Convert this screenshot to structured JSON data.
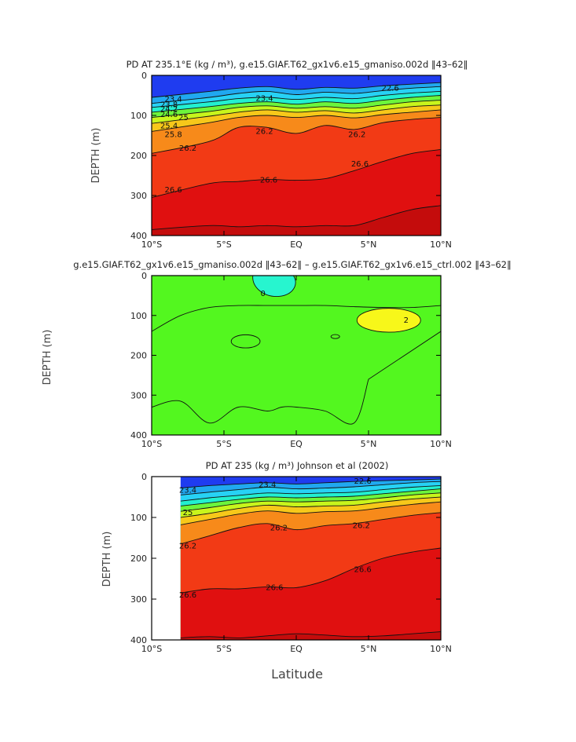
{
  "figure_xlabel": "Latitude",
  "chart_data": [
    {
      "type": "heatmap",
      "title": "PD AT 235.1°E (kg / m³), g.e15.GIAF.T62_gx1v6.e15_gmaniso.002d ‖43–62‖",
      "xlabel": "",
      "ylabel": "DEPTH (m)",
      "x_ticks": [
        "10°S",
        "5°S",
        "EQ",
        "5°N",
        "10°N"
      ],
      "y_ticks": [
        "0",
        "100",
        "200",
        "300",
        "400"
      ],
      "xlim": [
        -10,
        10
      ],
      "ylim": [
        400,
        0
      ],
      "data_xlim": [
        -10,
        10
      ],
      "colormap": "sigma_theta",
      "isopycnals": [
        {
          "level": 23.4,
          "x": [
            -10,
            -6,
            -4,
            -2,
            0,
            2,
            4,
            6,
            8,
            10
          ],
          "depth": [
            55,
            40,
            32,
            28,
            35,
            30,
            32,
            26,
            22,
            18
          ]
        },
        {
          "level": 23.8,
          "x": [
            -10,
            -6,
            -4,
            -2,
            0,
            2,
            4,
            6,
            8,
            10
          ],
          "depth": [
            70,
            55,
            45,
            40,
            48,
            42,
            45,
            38,
            32,
            28
          ]
        },
        {
          "level": 24.2,
          "x": [
            -10,
            -6,
            -4,
            -2,
            0,
            2,
            4,
            6,
            8,
            10
          ],
          "depth": [
            80,
            66,
            58,
            55,
            60,
            55,
            58,
            50,
            44,
            40
          ]
        },
        {
          "level": 24.6,
          "x": [
            -10,
            -6,
            -4,
            -2,
            0,
            2,
            4,
            6,
            8,
            10
          ],
          "depth": [
            92,
            78,
            70,
            66,
            72,
            66,
            70,
            62,
            55,
            50
          ]
        },
        {
          "level": 25.0,
          "x": [
            -10,
            -6,
            -4,
            -2,
            0,
            2,
            4,
            6,
            8,
            10
          ],
          "depth": [
            105,
            90,
            80,
            76,
            82,
            78,
            82,
            74,
            66,
            62
          ]
        },
        {
          "level": 25.4,
          "x": [
            -10,
            -6,
            -4,
            -2,
            0,
            2,
            4,
            6,
            8,
            10
          ],
          "depth": [
            120,
            102,
            92,
            86,
            92,
            88,
            94,
            86,
            78,
            74
          ]
        },
        {
          "level": 25.8,
          "x": [
            -10,
            -6,
            -4,
            -2,
            0,
            2,
            4,
            6,
            8,
            10
          ],
          "depth": [
            140,
            118,
            105,
            100,
            105,
            100,
            106,
            98,
            92,
            86
          ]
        },
        {
          "level": 26.2,
          "x": [
            -10,
            -6,
            -4,
            -2,
            0,
            2,
            4,
            6,
            8,
            10
          ],
          "depth": [
            195,
            165,
            130,
            130,
            145,
            125,
            135,
            118,
            110,
            105
          ]
        },
        {
          "level": 26.6,
          "x": [
            -10,
            -6,
            -4,
            -2,
            0,
            2,
            4,
            6,
            8,
            10
          ],
          "depth": [
            305,
            270,
            265,
            260,
            262,
            258,
            238,
            215,
            195,
            185
          ]
        },
        {
          "level": 27.0,
          "x": [
            -10,
            -6,
            -4,
            -2,
            0,
            2,
            4,
            6,
            8,
            10
          ],
          "depth": [
            385,
            375,
            378,
            375,
            378,
            375,
            375,
            355,
            335,
            325
          ]
        }
      ],
      "contour_labels": [
        {
          "text": "23.4",
          "x": -8.5,
          "depth": 60
        },
        {
          "text": "23.8",
          "x": -8.8,
          "depth": 74
        },
        {
          "text": "24.2",
          "x": -8.8,
          "depth": 84
        },
        {
          "text": "24.6",
          "x": -8.8,
          "depth": 98
        },
        {
          "text": "25",
          "x": -7.8,
          "depth": 106
        },
        {
          "text": "25.4",
          "x": -8.8,
          "depth": 126
        },
        {
          "text": "25.8",
          "x": -8.5,
          "depth": 148
        },
        {
          "text": "26.2",
          "x": -7.5,
          "depth": 182
        },
        {
          "text": "26.6",
          "x": -8.5,
          "depth": 286
        },
        {
          "text": "26.6",
          "x": -1.9,
          "depth": 262
        },
        {
          "text": "26.6",
          "x": 4.4,
          "depth": 222
        },
        {
          "text": "22.6",
          "x": 6.5,
          "depth": 32
        },
        {
          "text": "23.4",
          "x": -2.2,
          "depth": 58
        },
        {
          "text": "26.2",
          "x": -2.2,
          "depth": 140
        },
        {
          "text": "26.2",
          "x": 4.2,
          "depth": 148
        }
      ]
    },
    {
      "type": "heatmap",
      "title": "g.e15.GIAF.T62_gx1v6.e15_gmaniso.002d ‖43–62‖ – g.e15.GIAF.T62_gx1v6.e15_ctrl.002 ‖43–62‖",
      "xlabel": "",
      "ylabel": "DEPTH (m)",
      "x_ticks": [
        "10°S",
        "5°S",
        "EQ",
        "5°N",
        "10°N"
      ],
      "y_ticks": [
        "0",
        "100",
        "200",
        "300",
        "400"
      ],
      "xlim": [
        -10,
        10
      ],
      "ylim": [
        400,
        0
      ],
      "colors": {
        "background": "#53f71f",
        "negative": "#27f5cf",
        "positive": "#f7f71a",
        "frame": "#000000"
      },
      "regions": [
        {
          "label": "0",
          "kind": "negative",
          "x": [
            -3,
            -0.2
          ],
          "depth": [
            0,
            55
          ]
        },
        {
          "label": "2",
          "kind": "positive",
          "x": [
            4.2,
            8.5
          ],
          "depth": [
            80,
            145
          ]
        }
      ],
      "zero_contour_lower": {
        "x": [
          -10,
          -8,
          -6,
          -4,
          -2,
          -1,
          0,
          2,
          4,
          5
        ],
        "depth": [
          330,
          315,
          370,
          330,
          340,
          330,
          330,
          340,
          370,
          260
        ]
      },
      "zero_contour_upper": {
        "x": [
          -10,
          -8,
          -6,
          -4,
          -2,
          0,
          2,
          4,
          6,
          8,
          10
        ],
        "depth": [
          140,
          100,
          80,
          75,
          75,
          75,
          75,
          78,
          80,
          80,
          75
        ]
      },
      "contour_labels": [
        {
          "text": "0",
          "x": -2.3,
          "depth": 45
        },
        {
          "text": "2",
          "x": 7.6,
          "depth": 112
        }
      ]
    },
    {
      "type": "heatmap",
      "title": "PD AT 235 (kg / m³) Johnson et al (2002)",
      "xlabel": "Latitude",
      "ylabel": "DEPTH (m)",
      "x_ticks": [
        "10°S",
        "5°S",
        "EQ",
        "5°N",
        "10°N"
      ],
      "y_ticks": [
        "0",
        "100",
        "200",
        "300",
        "400"
      ],
      "xlim": [
        -10,
        10
      ],
      "ylim": [
        400,
        0
      ],
      "data_xlim": [
        -8,
        10
      ],
      "colormap": "sigma_theta",
      "isopycnals": [
        {
          "level": 23.4,
          "x": [
            -8,
            -6,
            -4,
            -2,
            0,
            2,
            4,
            6,
            8,
            10
          ],
          "depth": [
            28,
            22,
            18,
            15,
            18,
            15,
            12,
            10,
            8,
            6
          ]
        },
        {
          "level": 23.8,
          "x": [
            -8,
            -6,
            -4,
            -2,
            0,
            2,
            4,
            6,
            8,
            10
          ],
          "depth": [
            45,
            38,
            32,
            26,
            30,
            28,
            25,
            20,
            15,
            12
          ]
        },
        {
          "level": 24.2,
          "x": [
            -8,
            -6,
            -4,
            -2,
            0,
            2,
            4,
            6,
            8,
            10
          ],
          "depth": [
            60,
            52,
            46,
            40,
            42,
            40,
            38,
            32,
            26,
            22
          ]
        },
        {
          "level": 24.6,
          "x": [
            -8,
            -6,
            -4,
            -2,
            0,
            2,
            4,
            6,
            8,
            10
          ],
          "depth": [
            72,
            64,
            56,
            50,
            52,
            50,
            48,
            42,
            36,
            30
          ]
        },
        {
          "level": 25.0,
          "x": [
            -8,
            -6,
            -4,
            -2,
            0,
            2,
            4,
            6,
            8,
            10
          ],
          "depth": [
            85,
            76,
            66,
            60,
            62,
            60,
            58,
            52,
            45,
            40
          ]
        },
        {
          "level": 25.4,
          "x": [
            -8,
            -6,
            -4,
            -2,
            0,
            2,
            4,
            6,
            8,
            10
          ],
          "depth": [
            100,
            90,
            78,
            70,
            74,
            72,
            70,
            62,
            55,
            50
          ]
        },
        {
          "level": 25.8,
          "x": [
            -8,
            -6,
            -4,
            -2,
            0,
            2,
            4,
            6,
            8,
            10
          ],
          "depth": [
            118,
            105,
            92,
            84,
            90,
            86,
            84,
            76,
            68,
            62
          ]
        },
        {
          "level": 26.2,
          "x": [
            -8,
            -6,
            -4,
            -2,
            0,
            2,
            4,
            6,
            8,
            10
          ],
          "depth": [
            165,
            145,
            125,
            115,
            130,
            120,
            115,
            105,
            95,
            88
          ]
        },
        {
          "level": 26.6,
          "x": [
            -8,
            -6,
            -4,
            -2,
            0,
            2,
            4,
            6,
            8,
            10
          ],
          "depth": [
            285,
            275,
            275,
            270,
            272,
            255,
            225,
            200,
            185,
            175
          ]
        },
        {
          "level": 27.0,
          "x": [
            -8,
            -6,
            -4,
            -2,
            0,
            2,
            4,
            6,
            8,
            10
          ],
          "depth": [
            395,
            392,
            395,
            390,
            385,
            388,
            392,
            390,
            385,
            380
          ]
        }
      ],
      "contour_labels": [
        {
          "text": "23.4",
          "x": -7.5,
          "depth": 34
        },
        {
          "text": "25",
          "x": -7.5,
          "depth": 88
        },
        {
          "text": "26.2",
          "x": -7.5,
          "depth": 170
        },
        {
          "text": "26.6",
          "x": -7.5,
          "depth": 290
        },
        {
          "text": "26.6",
          "x": -1.5,
          "depth": 272
        },
        {
          "text": "26.6",
          "x": 4.6,
          "depth": 228
        },
        {
          "text": "23.4",
          "x": -2.0,
          "depth": 20
        },
        {
          "text": "26.2",
          "x": -1.2,
          "depth": 126
        },
        {
          "text": "26.2",
          "x": 4.5,
          "depth": 120
        },
        {
          "text": "22.6",
          "x": 4.6,
          "depth": 12
        }
      ]
    }
  ]
}
